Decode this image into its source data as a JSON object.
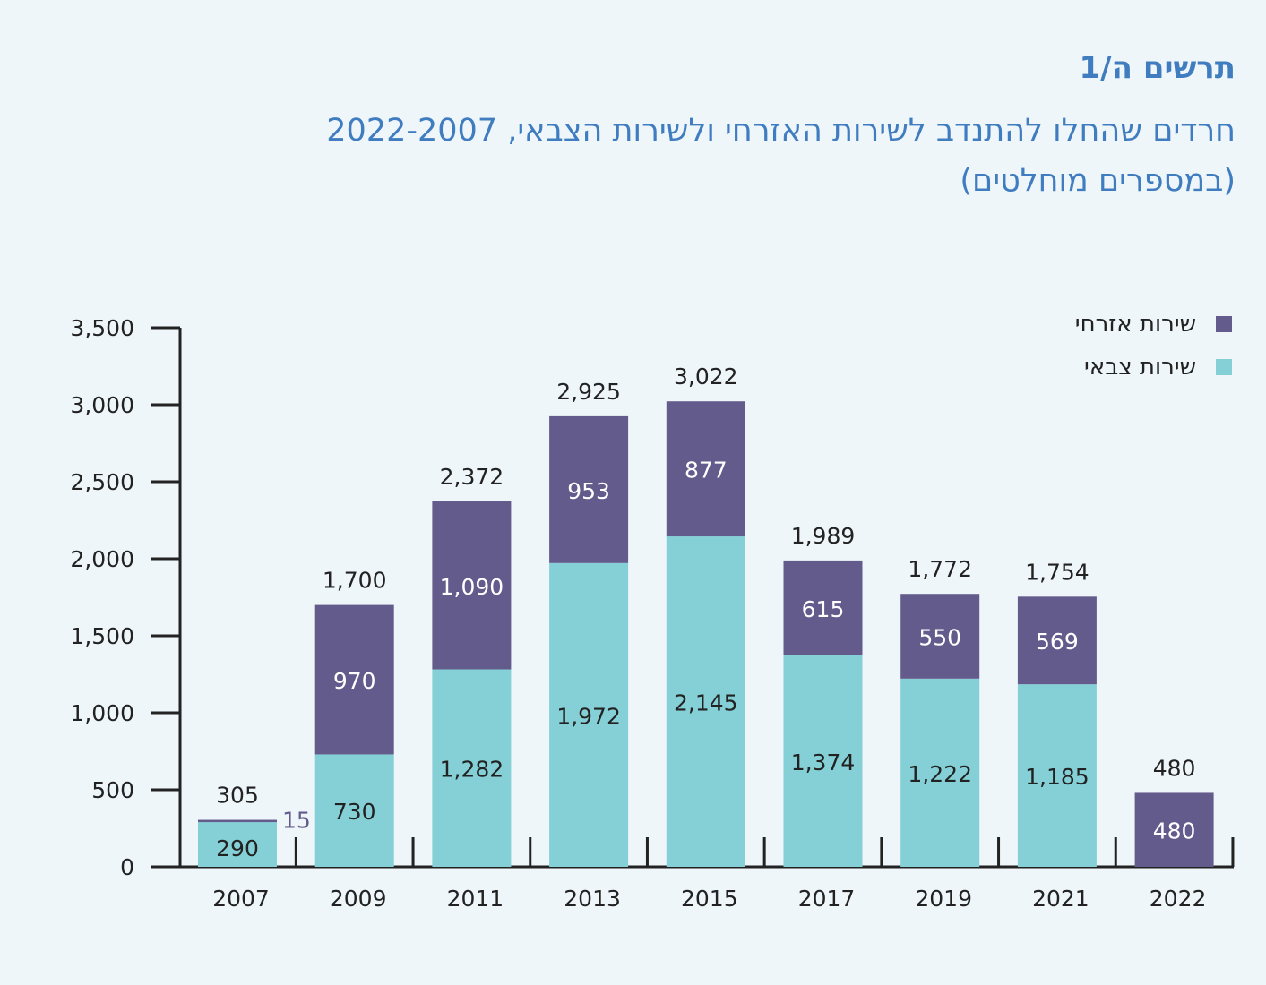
{
  "header": {
    "label": "תרשים ה/1",
    "title": "חרדים שהחלו להתנדב לשירות האזרחי ולשירות הצבאי, 2022-2007",
    "subtitle": "(במספרים מוחלטים)"
  },
  "colors": {
    "background": "#eef6f9",
    "title": "#3f7cc0",
    "military": "#84d0d6",
    "civil": "#635b8c",
    "axis": "#222222"
  },
  "chart_data": {
    "type": "bar",
    "stacked": true,
    "categories": [
      "2007",
      "2009",
      "2011",
      "2013",
      "2015",
      "2017",
      "2019",
      "2021",
      "2022"
    ],
    "series": [
      {
        "name": "שירות צבאי",
        "values": [
          290,
          730,
          1282,
          1972,
          2145,
          1374,
          1222,
          1185,
          0
        ],
        "labels": [
          "290",
          "730",
          "1,282",
          "1,972",
          "2,145",
          "1,374",
          "1,222",
          "1,185",
          ""
        ]
      },
      {
        "name": "שירות אזרחי",
        "values": [
          15,
          970,
          1090,
          953,
          877,
          615,
          550,
          569,
          480
        ],
        "labels": [
          "15",
          "970",
          "1,090",
          "953",
          "877",
          "615",
          "550",
          "569",
          "480"
        ]
      }
    ],
    "totals": [
      305,
      1700,
      2372,
      2925,
      3022,
      1989,
      1772,
      1754,
      480
    ],
    "total_labels": [
      "305",
      "1,700",
      "2,372",
      "2,925",
      "3,022",
      "1,989",
      "1,772",
      "1,754",
      "480"
    ],
    "yticks": [
      "0",
      "500",
      "1,000",
      "1,500",
      "2,000",
      "2,500",
      "3,000",
      "3,500"
    ],
    "ylim": [
      0,
      3500
    ],
    "legend_position": "top-right"
  }
}
